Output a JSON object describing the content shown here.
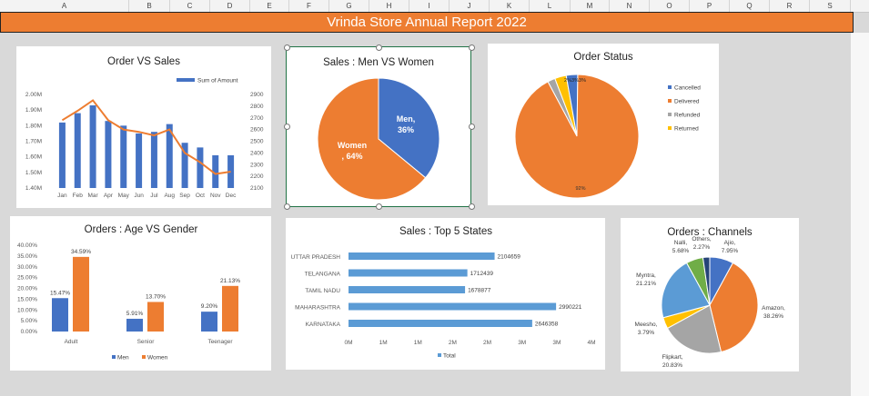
{
  "sheet": {
    "columns": [
      "A",
      "B",
      "C",
      "D",
      "E",
      "F",
      "G",
      "H",
      "I",
      "J",
      "K",
      "L",
      "M",
      "N",
      "O",
      "P",
      "Q",
      "R",
      "S"
    ],
    "banner_title": "Vrinda Store Annual Report 2022",
    "colors": {
      "banner": "#ed7d31",
      "blue": "#4472c4",
      "orange": "#ed7d31",
      "gray": "#a5a5a5",
      "yellow": "#ffc000",
      "dark": "#264478",
      "green": "#70ad47",
      "skyblue": "#5b9bd5"
    }
  },
  "chart_data": [
    {
      "type": "bar",
      "title": "Order VS Sales",
      "legend": "Sum of Amount",
      "categories": [
        "Jan",
        "Feb",
        "Mar",
        "Apr",
        "May",
        "Jun",
        "Jul",
        "Aug",
        "Sep",
        "Oct",
        "Nov",
        "Dec"
      ],
      "series": [
        {
          "name": "Sum of Amount",
          "values": [
            1.82,
            1.88,
            1.93,
            1.83,
            1.8,
            1.75,
            1.76,
            1.81,
            1.69,
            1.66,
            1.61,
            1.61
          ]
        },
        {
          "values": [
            2680,
            2760,
            2850,
            2680,
            2600,
            2580,
            2550,
            2600,
            2400,
            2320,
            2220,
            2240
          ]
        }
      ],
      "left_ticks": [
        "2.00M",
        "1.90M",
        "1.80M",
        "1.70M",
        "1.60M",
        "1.50M",
        "1.40M"
      ],
      "right_ticks": [
        "2900",
        "2800",
        "2700",
        "2600",
        "2500",
        "2400",
        "2300",
        "2200",
        "2100"
      ],
      "ylim": [
        1.4,
        2.0
      ],
      "y2lim": [
        2100,
        2900
      ]
    },
    {
      "type": "pie",
      "title": "Sales : Men VS Women",
      "slices": [
        {
          "label": "Men,",
          "value": 36,
          "display": "36%",
          "color": "#4472c4"
        },
        {
          "label": "Women",
          "value": 64,
          "display": ", 64%",
          "color": "#ed7d31"
        }
      ]
    },
    {
      "type": "pie",
      "title": "Order Status",
      "legend": [
        "Cancelled",
        "Delivered",
        "Refunded",
        "Returned"
      ],
      "slices": [
        {
          "name": "Cancelled",
          "value": 3,
          "label": "3%",
          "color": "#4472c4"
        },
        {
          "name": "Delivered",
          "value": 92,
          "label": "92%",
          "color": "#ed7d31"
        },
        {
          "name": "Refunded",
          "value": 2,
          "label": "2%",
          "color": "#a5a5a5"
        },
        {
          "name": "Returned",
          "value": 3,
          "label": "3%",
          "color": "#ffc000"
        }
      ]
    },
    {
      "type": "bar",
      "title": "Orders : Age VS Gender",
      "categories": [
        "Adult",
        "Senior",
        "Teenager"
      ],
      "series": [
        {
          "name": "Men",
          "values": [
            15.47,
            5.91,
            9.2
          ],
          "labels": [
            "15.47%",
            "5.91%",
            "9.20%"
          ]
        },
        {
          "name": "Women",
          "values": [
            34.59,
            13.7,
            21.13
          ],
          "labels": [
            "34.59%",
            "13.70%",
            "21.13%"
          ]
        }
      ],
      "yticks": [
        "40.00%",
        "35.00%",
        "30.00%",
        "25.00%",
        "20.00%",
        "15.00%",
        "10.00%",
        "5.00%",
        "0.00%"
      ],
      "ylim": [
        0,
        40
      ],
      "legend": [
        "Men",
        "Women"
      ]
    },
    {
      "type": "bar",
      "orientation": "horizontal",
      "title": "Sales : Top 5 States",
      "categories": [
        "UTTAR PRADESH",
        "TELANGANA",
        "TAMIL NADU",
        "MAHARASHTRA",
        "KARNATAKA"
      ],
      "values": [
        2104659,
        1712439,
        1678877,
        2990221,
        2646358
      ],
      "labels": [
        "2104659",
        "1712439",
        "1678877",
        "2990221",
        "2646358"
      ],
      "xticks": [
        "0M",
        "1M",
        "1M",
        "2M",
        "2M",
        "3M",
        "3M",
        "4M"
      ],
      "xlim": [
        0,
        3500000
      ],
      "legend": "Total"
    },
    {
      "type": "pie",
      "title": "Orders : Channels",
      "slices": [
        {
          "name": "Ajio,",
          "value": 7.95,
          "pct": "7.95%",
          "color": "#4472c4"
        },
        {
          "name": "Amazon,",
          "value": 38.26,
          "pct": "38.26%",
          "color": "#ed7d31"
        },
        {
          "name": "Flipkart,",
          "value": 20.83,
          "pct": "20.83%",
          "color": "#a5a5a5"
        },
        {
          "name": "Meesho,",
          "value": 3.79,
          "pct": "3.79%",
          "color": "#ffc000"
        },
        {
          "name": "Myntra,",
          "value": 21.21,
          "pct": "21.21%",
          "color": "#5b9bd5"
        },
        {
          "name": "Nalli,",
          "value": 5.68,
          "pct": "5.68%",
          "color": "#70ad47"
        },
        {
          "name": "Others,",
          "value": 2.27,
          "pct": "2.27%",
          "color": "#264478"
        }
      ]
    }
  ]
}
